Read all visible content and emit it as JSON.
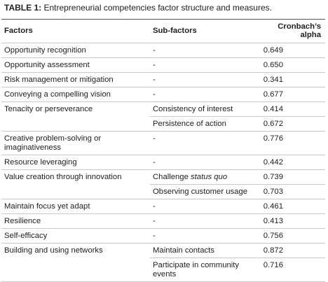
{
  "title": {
    "label": "TABLE 1:",
    "text": "Entrepreneurial competencies factor structure and measures."
  },
  "table": {
    "header": [
      "Factors",
      "Sub-factors",
      "Cronbach’s alpha"
    ],
    "rows": [
      [
        "Opportunity recognition",
        "-",
        "0.649"
      ],
      [
        "Opportunity assessment",
        "-",
        "0.650"
      ],
      [
        "Risk management or mitigation",
        "-",
        "0.341"
      ],
      [
        "Conveying a compelling vision",
        "-",
        "0.677"
      ],
      [
        "Tenacity or perseverance",
        "Consistency of interest",
        "0.414"
      ],
      [
        null,
        "Persistence of action",
        "0.672"
      ],
      [
        "Creative problem-solving or imaginativeness",
        "-",
        "0.776"
      ],
      [
        "Resource leveraging",
        "-",
        "0.442"
      ],
      [
        "Value creation through innovation",
        [
          "Challenge",
          "status quo"
        ],
        "0.739"
      ],
      [
        null,
        "Observing customer usage",
        "0.703"
      ],
      [
        "Maintain focus yet adapt",
        "-",
        "0.461"
      ],
      [
        "Resilience",
        "-",
        "0.413"
      ],
      [
        "Self-efficacy",
        "-",
        "0.756"
      ],
      [
        "Building and using networks",
        "Maintain contacts",
        "0.872"
      ],
      [
        null,
        "Participate in community events",
        "0.716"
      ]
    ]
  }
}
